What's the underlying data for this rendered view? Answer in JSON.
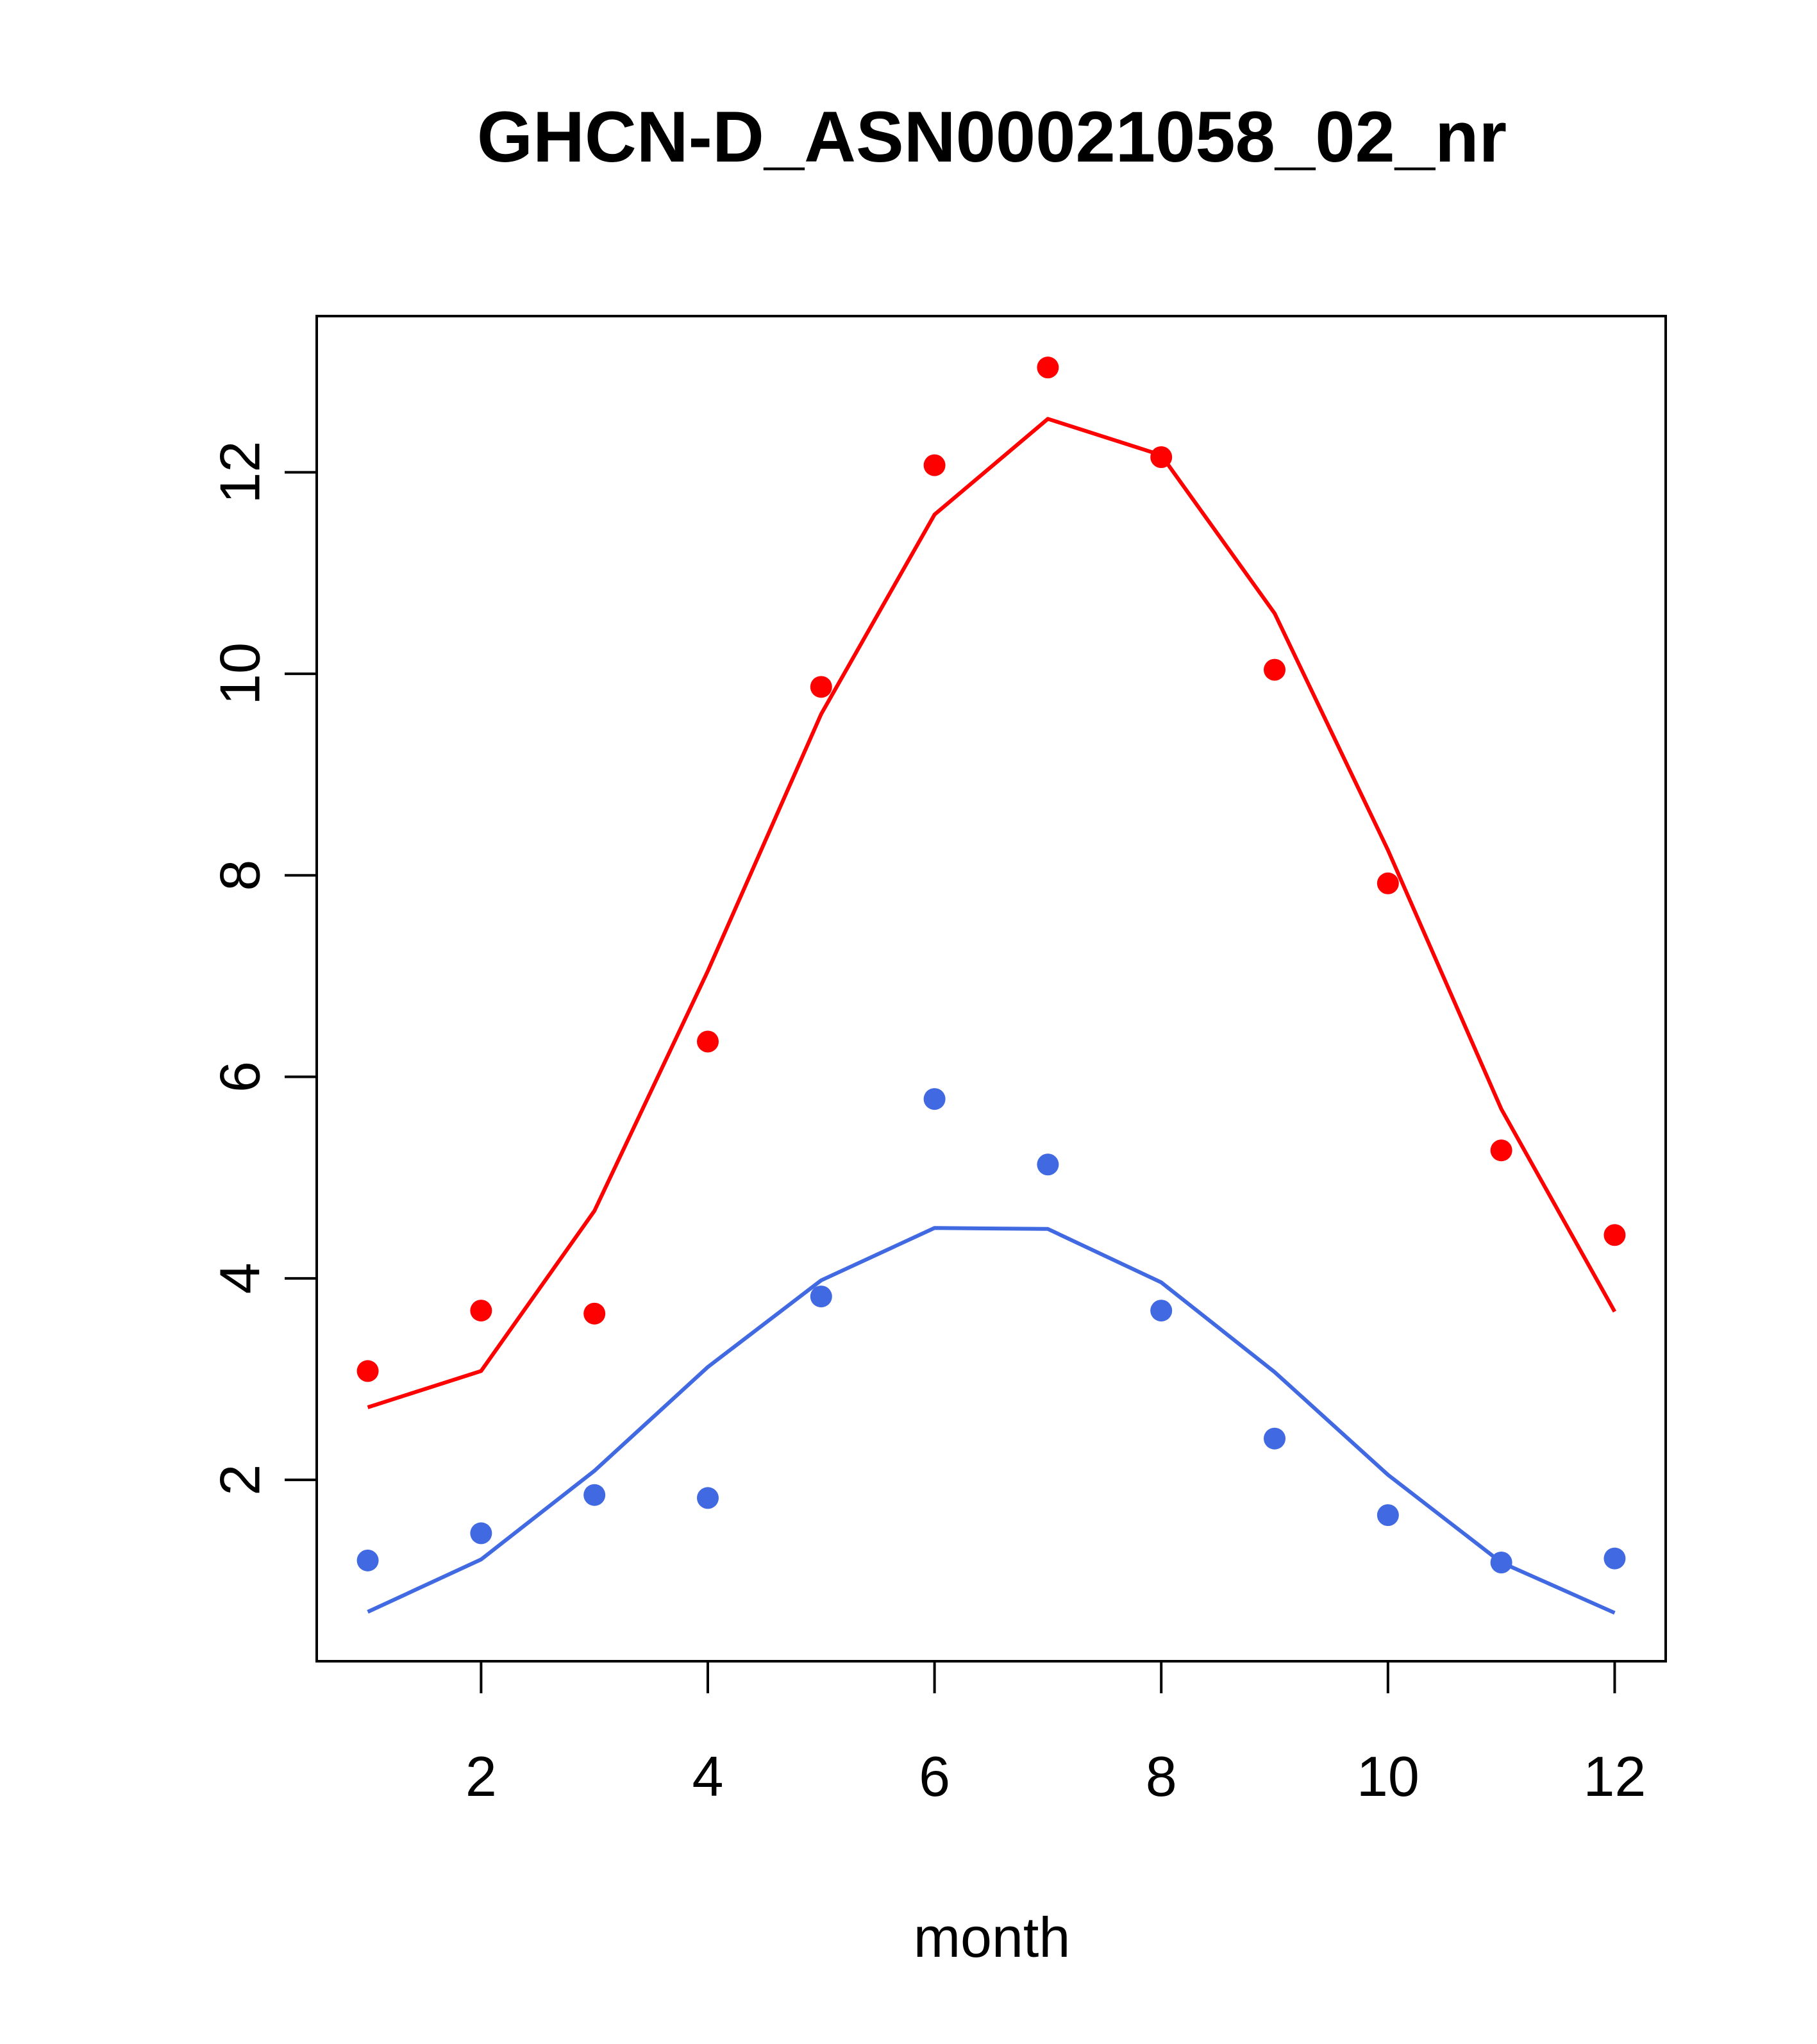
{
  "chart_data": {
    "type": "line",
    "title": "GHCN-D_ASN00021058_02_nr",
    "xlabel": "month",
    "ylabel": "",
    "xlim": [
      0.55,
      12.45
    ],
    "ylim": [
      0.2,
      13.55
    ],
    "x_ticks": [
      "2",
      "4",
      "6",
      "8",
      "10",
      "12"
    ],
    "y_ticks": [
      "2",
      "4",
      "6",
      "8",
      "10",
      "12"
    ],
    "grid": false,
    "legend": "none",
    "x": [
      1,
      2,
      3,
      4,
      5,
      6,
      7,
      8,
      9,
      10,
      11,
      12
    ],
    "series": [
      {
        "color": "#ff0000",
        "points": [
          3.08,
          3.68,
          3.65,
          6.35,
          9.87,
          12.07,
          13.04,
          12.15,
          10.04,
          7.92,
          5.27,
          4.43
        ],
        "line": [
          2.72,
          3.08,
          4.67,
          7.05,
          9.6,
          11.58,
          12.53,
          12.17,
          10.6,
          8.25,
          5.68,
          3.67
        ]
      },
      {
        "color": "#4169e1",
        "points": [
          1.2,
          1.47,
          1.85,
          1.82,
          3.82,
          5.78,
          5.13,
          3.68,
          2.41,
          1.65,
          1.18,
          1.22
        ],
        "line": [
          0.69,
          1.21,
          2.09,
          3.12,
          3.98,
          4.5,
          4.49,
          3.96,
          3.07,
          2.05,
          1.18,
          0.68
        ]
      }
    ]
  }
}
